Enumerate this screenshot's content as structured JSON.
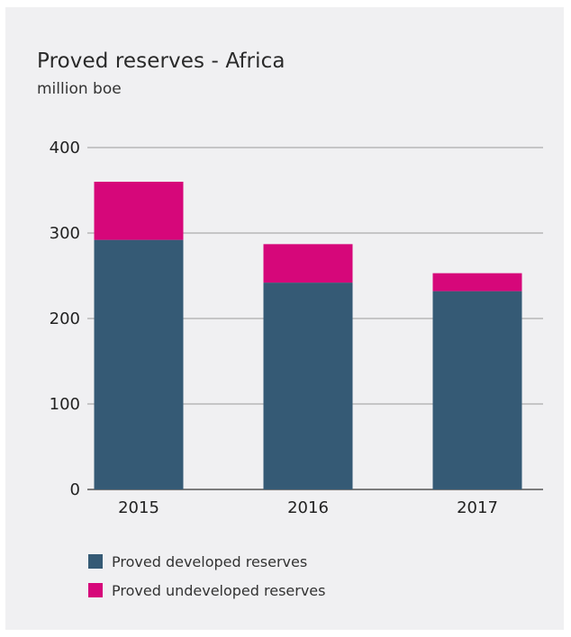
{
  "chart_data": {
    "type": "bar",
    "stacked": true,
    "title": "Proved reserves - Africa",
    "subtitle": "million boe",
    "categories": [
      "2015",
      "2016",
      "2017"
    ],
    "series": [
      {
        "name": "Proved developed reserves",
        "color": "#355a75",
        "values": [
          292,
          242,
          232
        ]
      },
      {
        "name": "Proved undeveloped reserves",
        "color": "#d6077a",
        "values": [
          68,
          45,
          21
        ]
      }
    ],
    "ylim": [
      0,
      400
    ],
    "yticks": [
      0,
      100,
      200,
      300,
      400
    ],
    "grid": true,
    "legend_position": "bottom-left"
  }
}
